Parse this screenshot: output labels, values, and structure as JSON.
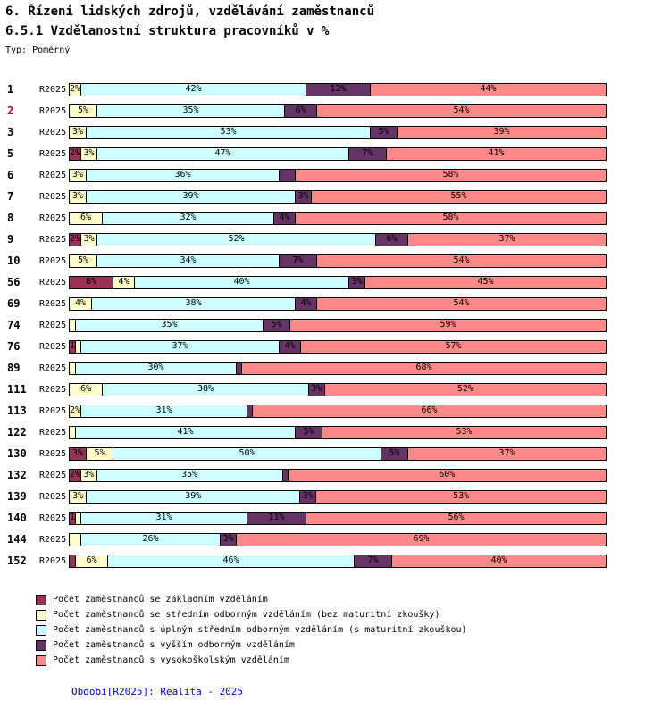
{
  "header": {
    "title_line1": "6. Řízení lidských zdrojů, vzdělávání zaměstnanců",
    "title_line2": "6.5.1 Vzdělanostní struktura pracovníků v %",
    "type_label": "Typ: Poměrný"
  },
  "footer": {
    "text": "Období[R2025]: Realita - 2025",
    "color": "#0000CC"
  },
  "colors": {
    "row_id_highlight": "#CC0000",
    "bar_border": "#000000",
    "background": "#FFFFFF"
  },
  "chart_data": {
    "type": "bar",
    "stacked": true,
    "orientation": "horizontal",
    "unit": "%",
    "xlim": [
      0,
      100
    ],
    "period_label": "R2025",
    "highlighted_category": "2",
    "categories": [
      "1",
      "2",
      "3",
      "5",
      "6",
      "7",
      "8",
      "9",
      "10",
      "56",
      "69",
      "74",
      "76",
      "89",
      "111",
      "113",
      "122",
      "130",
      "132",
      "139",
      "140",
      "144",
      "152"
    ],
    "series": [
      {
        "key": "zakladni",
        "name": "Počet zaměstnanců se základním vzděláním",
        "color": "#993355",
        "values": [
          0,
          0,
          0,
          2,
          0,
          0,
          0,
          2,
          0,
          8,
          0,
          0,
          1,
          0,
          0,
          0,
          0,
          3,
          2,
          0,
          1,
          0,
          1
        ]
      },
      {
        "key": "stredni_bez_maturity",
        "name": "Počet zaměstnanců se středním odborným vzděláním (bez maturitní zkoušky)",
        "color": "#FFFFCC",
        "values": [
          2,
          5,
          3,
          3,
          3,
          3,
          6,
          3,
          5,
          4,
          4,
          1,
          1,
          1,
          6,
          2,
          1,
          5,
          3,
          3,
          1,
          2,
          6
        ]
      },
      {
        "key": "uplne_stredni_s_maturitou",
        "name": "Počet zaměstnanců s úplným středním odborným vzděláním (s maturitní zkouškou)",
        "color": "#CCFFFF",
        "values": [
          42,
          35,
          53,
          47,
          36,
          39,
          32,
          52,
          34,
          40,
          38,
          35,
          37,
          30,
          38,
          31,
          41,
          50,
          35,
          39,
          31,
          26,
          46
        ]
      },
      {
        "key": "vyssi_odborne",
        "name": "Počet zaměstnanců s vyšším odborným vzděláním",
        "color": "#663366",
        "values": [
          12,
          6,
          5,
          7,
          3,
          3,
          4,
          6,
          7,
          3,
          4,
          5,
          4,
          1,
          3,
          1,
          5,
          5,
          1,
          3,
          11,
          3,
          7
        ]
      },
      {
        "key": "vysokoskolske",
        "name": "Počet zaměstnanců s vysokoškolským vzděláním",
        "color": "#FF8888",
        "values": [
          44,
          54,
          39,
          41,
          58,
          55,
          58,
          37,
          54,
          45,
          54,
          59,
          57,
          68,
          52,
          66,
          53,
          37,
          60,
          53,
          56,
          69,
          40
        ]
      }
    ],
    "segment_labels": [
      [
        "",
        "2%",
        "42%",
        "12%",
        "44%"
      ],
      [
        "",
        "5%",
        "35%",
        "6%",
        "54%"
      ],
      [
        "",
        "3%",
        "53%",
        "5%",
        "39%"
      ],
      [
        "2%",
        "3%",
        "47%",
        "7%",
        "41%"
      ],
      [
        "",
        "3%",
        "36%",
        "",
        "58%"
      ],
      [
        "",
        "3%",
        "39%",
        "3%",
        "55%"
      ],
      [
        "",
        "6%",
        "32%",
        "4%",
        "58%"
      ],
      [
        "2%",
        "3%",
        "52%",
        "6%",
        "37%"
      ],
      [
        "",
        "5%",
        "34%",
        "7%",
        "54%"
      ],
      [
        "8%",
        "4%",
        "40%",
        "3%",
        "45%"
      ],
      [
        "",
        "4%",
        "38%",
        "4%",
        "54%"
      ],
      [
        "",
        "",
        "35%",
        "5%",
        "59%"
      ],
      [
        "1",
        "",
        "37%",
        "4%",
        "57%"
      ],
      [
        "",
        "",
        "30%",
        "",
        "68%"
      ],
      [
        "",
        "6%",
        "38%",
        "3%",
        "52%"
      ],
      [
        "",
        "2%",
        "31%",
        "",
        "66%"
      ],
      [
        "",
        "",
        "41%",
        "5%",
        "53%"
      ],
      [
        "3%",
        "5%",
        "50%",
        "5%",
        "37%"
      ],
      [
        "2%",
        "3%",
        "35%",
        "",
        "60%"
      ],
      [
        "",
        "3%",
        "39%",
        "3%",
        "53%"
      ],
      [
        "1",
        "",
        "31%",
        "11%",
        "56%"
      ],
      [
        "",
        "",
        "26%",
        "3%",
        "69%"
      ],
      [
        "",
        "6%",
        "46%",
        "7%",
        "40%"
      ]
    ]
  }
}
